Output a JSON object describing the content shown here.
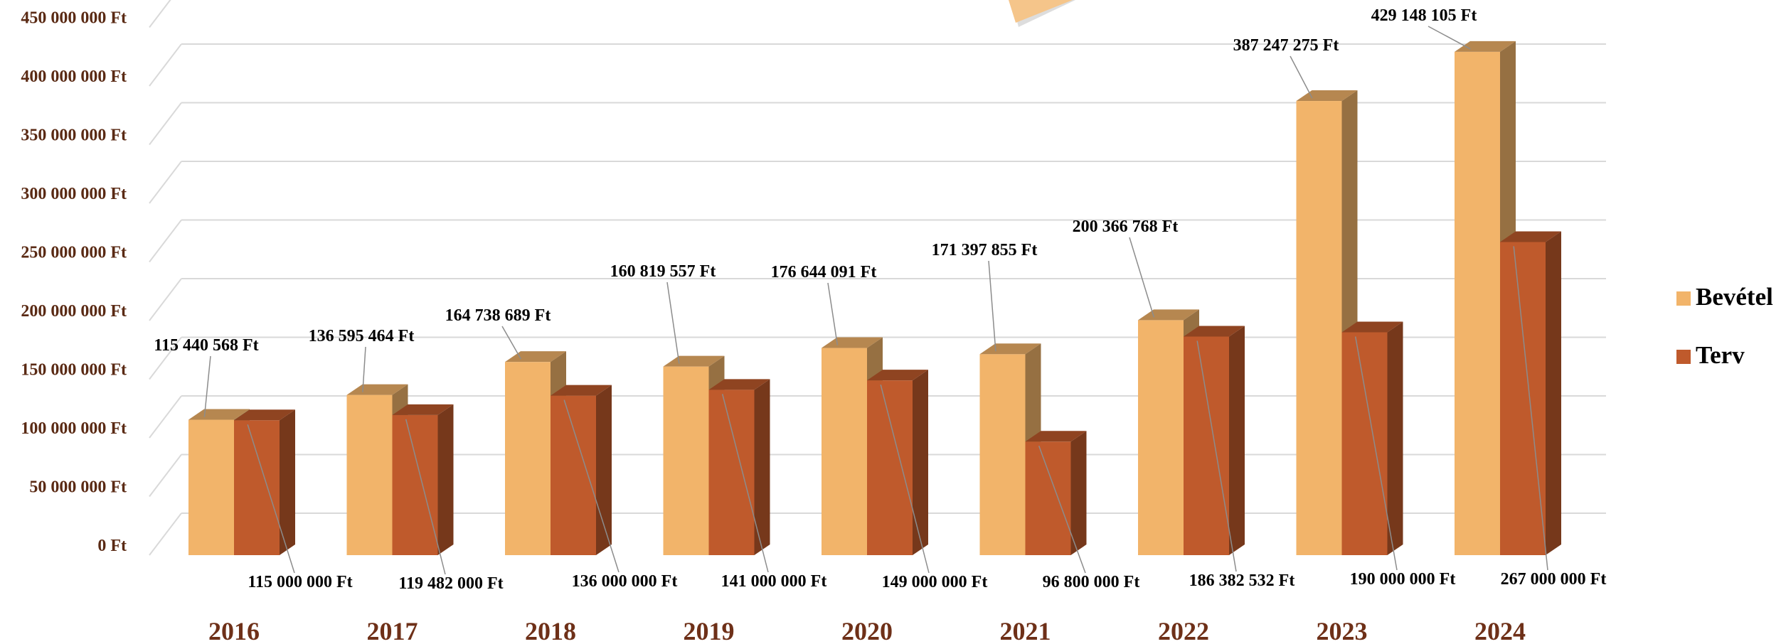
{
  "chart_data": {
    "type": "bar",
    "categories": [
      "2016",
      "2017",
      "2018",
      "2019",
      "2020",
      "2021",
      "2022",
      "2023",
      "2024"
    ],
    "series": [
      {
        "name": "Bevétel",
        "values": [
          115440568,
          136595464,
          164738689,
          160819557,
          176644091,
          171397855,
          200366768,
          387247275,
          429148105
        ],
        "labels": [
          "115 440 568 Ft",
          "136 595 464 Ft",
          "164 738 689 Ft",
          "160 819 557 Ft",
          "176 644 091 Ft",
          "171 397 855 Ft",
          "200 366 768 Ft",
          "387 247 275 Ft",
          "429 148 105 Ft"
        ]
      },
      {
        "name": "Terv",
        "values": [
          115000000,
          119482000,
          136000000,
          141000000,
          149000000,
          96800000,
          186382532,
          190000000,
          267000000
        ],
        "labels": [
          "115 000 000 Ft",
          "119 482 000 Ft",
          "136 000 000 Ft",
          "141 000 000 Ft",
          "149 000 000 Ft",
          "96 800 000 Ft",
          "186 382 532 Ft",
          "190 000 000 Ft",
          "267 000 000 Ft"
        ]
      }
    ],
    "y_ticks": [
      "0 Ft",
      "50 000 000 Ft",
      "100 000 000 Ft",
      "150 000 000 Ft",
      "200 000 000 Ft",
      "250 000 000 Ft",
      "300 000 000 Ft",
      "350 000 000 Ft",
      "400 000 000 Ft",
      "450 000 000 Ft"
    ],
    "ylim": [
      0,
      450000000
    ],
    "grid": true,
    "legend_position": "right",
    "colors": {
      "Bevétel": "#f2b46a",
      "Terv": "#bf5a2c",
      "axis_text": "#5a2a14",
      "category_text": "#6e3018",
      "grid": "#d9d9d9"
    }
  }
}
